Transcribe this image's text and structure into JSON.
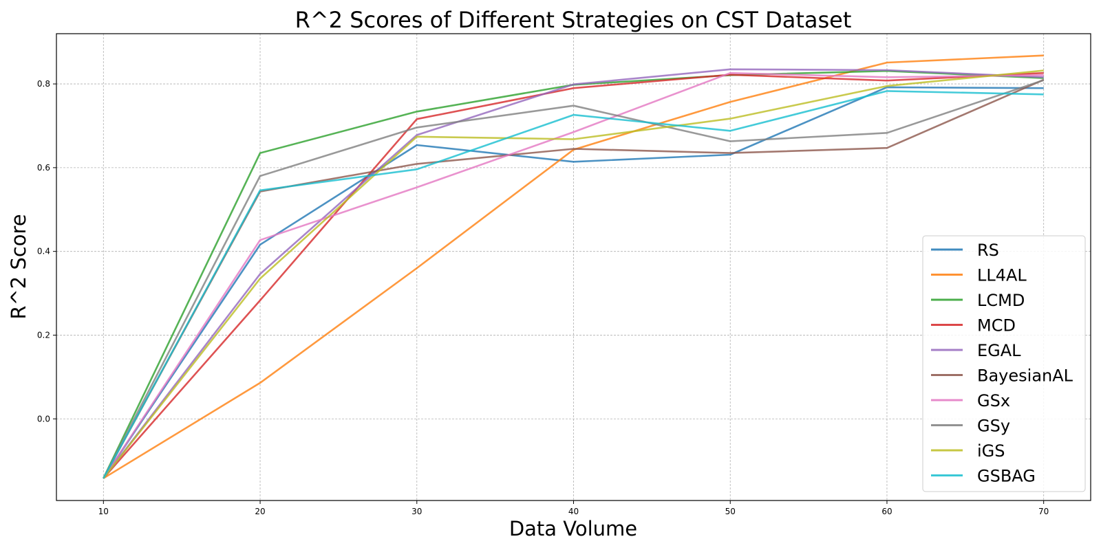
{
  "chart_data": {
    "type": "line",
    "title": "R^2 Scores of Different Strategies on CST Dataset",
    "xlabel": "Data Volume",
    "ylabel": "R^2 Score",
    "x": [
      10,
      20,
      30,
      40,
      50,
      60,
      70
    ],
    "xlim": [
      7,
      73
    ],
    "ylim": [
      -0.195,
      0.92
    ],
    "xticks": [
      "10",
      "20",
      "30",
      "40",
      "50",
      "60",
      "70"
    ],
    "yticks": [
      "0.0",
      "0.2",
      "0.4",
      "0.6",
      "0.8"
    ],
    "grid": true,
    "legend_position": "lower-right",
    "series": [
      {
        "name": "RS",
        "color": "#1f77b4",
        "values": [
          -0.142,
          0.416,
          0.654,
          0.614,
          0.631,
          0.792,
          0.79
        ]
      },
      {
        "name": "LL4AL",
        "color": "#ff7f0e",
        "values": [
          -0.142,
          0.086,
          0.36,
          0.643,
          0.757,
          0.851,
          0.868
        ]
      },
      {
        "name": "LCMD",
        "color": "#2ca02c",
        "values": [
          -0.142,
          0.635,
          0.734,
          0.798,
          0.821,
          0.831,
          0.814
        ]
      },
      {
        "name": "MCD",
        "color": "#d62728",
        "values": [
          -0.142,
          0.283,
          0.716,
          0.79,
          0.822,
          0.808,
          0.826
        ]
      },
      {
        "name": "EGAL",
        "color": "#9467bd",
        "values": [
          -0.142,
          0.346,
          0.678,
          0.799,
          0.835,
          0.833,
          0.816
        ]
      },
      {
        "name": "BayesianAL",
        "color": "#8c564b",
        "values": [
          -0.142,
          0.543,
          0.609,
          0.645,
          0.635,
          0.647,
          0.81
        ]
      },
      {
        "name": "GSx",
        "color": "#e377c2",
        "values": [
          -0.142,
          0.427,
          0.553,
          0.685,
          0.826,
          0.816,
          0.821
        ]
      },
      {
        "name": "GSy",
        "color": "#7f7f7f",
        "values": [
          -0.142,
          0.58,
          0.696,
          0.748,
          0.663,
          0.683,
          0.809
        ]
      },
      {
        "name": "iGS",
        "color": "#bcbd22",
        "values": [
          -0.142,
          0.335,
          0.674,
          0.668,
          0.717,
          0.795,
          0.832
        ]
      },
      {
        "name": "GSBAG",
        "color": "#17becf",
        "values": [
          -0.142,
          0.546,
          0.596,
          0.726,
          0.688,
          0.783,
          0.775
        ]
      }
    ]
  }
}
